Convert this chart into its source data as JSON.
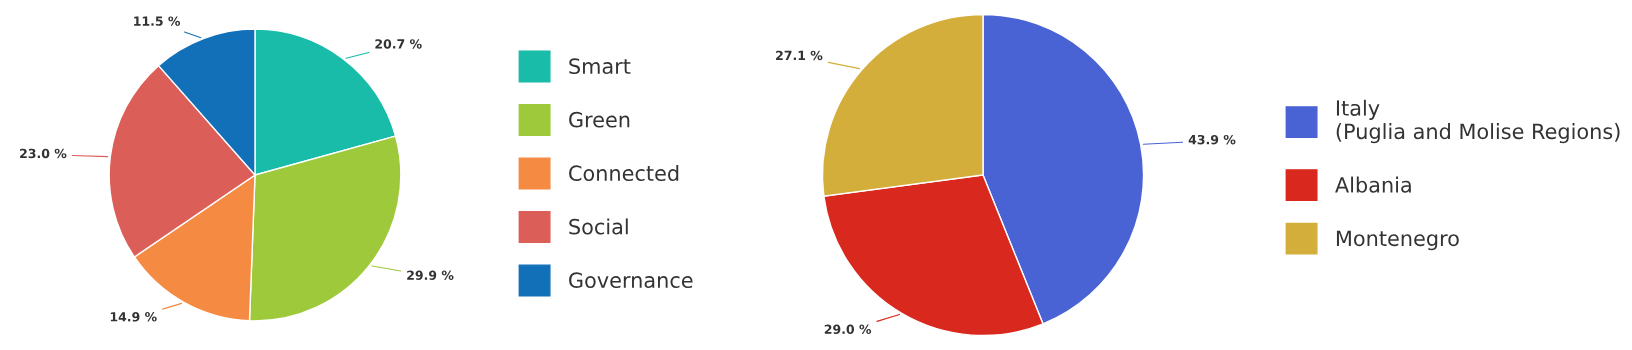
{
  "chart_data": [
    {
      "type": "pie",
      "categories": [
        "Smart",
        "Green",
        "Connected",
        "Social",
        "Governance"
      ],
      "values": [
        20.7,
        29.9,
        14.9,
        23.0,
        11.5
      ],
      "value_labels": [
        "20.7 %",
        "29.9 %",
        "14.9 %",
        "23.0 %",
        "11.5 %"
      ],
      "colors": [
        "#19bba9",
        "#9dc93a",
        "#f58a42",
        "#dc5e58",
        "#1170b8"
      ],
      "legend": "right"
    },
    {
      "type": "pie",
      "categories": [
        "Italy\n(Puglia and Molise Regions)",
        "Albania",
        "Montenegro"
      ],
      "values": [
        43.9,
        29.0,
        27.1
      ],
      "value_labels": [
        "43.9 %",
        "29.0 %",
        "27.1 %"
      ],
      "colors": [
        "#4a63d4",
        "#d9281e",
        "#d4ae3a"
      ],
      "legend": "right"
    }
  ]
}
